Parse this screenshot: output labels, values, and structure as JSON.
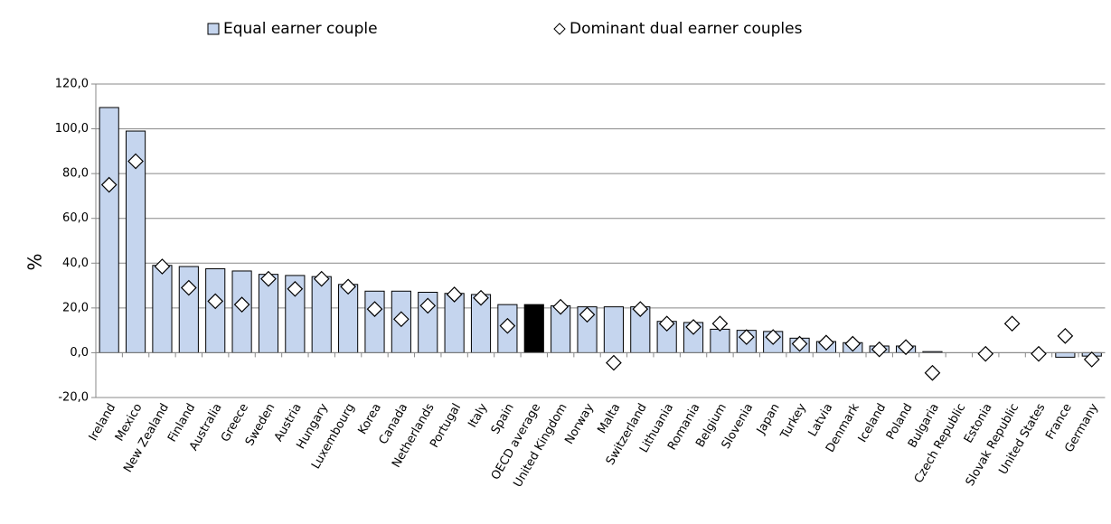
{
  "chart_data": {
    "type": "bar",
    "categories": [
      "Ireland",
      "Mexico",
      "New Zealand",
      "Finland",
      "Australia",
      "Greece",
      "Sweden",
      "Austria",
      "Hungary",
      "Luxembourg",
      "Korea",
      "Canada",
      "Netherlands",
      "Portugal",
      "Italy",
      "Spain",
      "OECD average",
      "United Kingdom",
      "Norway",
      "Malta",
      "Switzerland",
      "Lithuania",
      "Romania",
      "Belgium",
      "Slovenia",
      "Japan",
      "Turkey",
      "Latvia",
      "Denmark",
      "Iceland",
      "Poland",
      "Bulgaria",
      "Czech Republic",
      "Estonia",
      "Slovak Republic",
      "United States",
      "France",
      "Germany"
    ],
    "series": [
      {
        "name": "Equal earner couple",
        "kind": "bar",
        "color": "#c5d5ee",
        "values": [
          109.5,
          99,
          39,
          38.5,
          37.5,
          36.5,
          35,
          34.5,
          34,
          30.5,
          27.5,
          27.5,
          27,
          26.5,
          26,
          21.5,
          21.5,
          21,
          20.5,
          20.5,
          20.5,
          14,
          13.5,
          10.5,
          10,
          9.5,
          6.5,
          5,
          4.5,
          3,
          3,
          0.5,
          0,
          0,
          0,
          0,
          -2,
          -1.5
        ]
      },
      {
        "name": "Dominant dual earner couples",
        "kind": "marker",
        "color": "#ffffff",
        "values": [
          75,
          85.5,
          38.5,
          29,
          23,
          21.5,
          33,
          28.5,
          33,
          29.5,
          19.5,
          15,
          21,
          26,
          24.5,
          12,
          17.5,
          20.5,
          17,
          -4.5,
          19.5,
          13,
          11.5,
          13,
          7,
          7,
          4,
          4.5,
          4,
          1.5,
          2.5,
          -9,
          null,
          -0.5,
          13,
          -0.5,
          7.5,
          -3
        ]
      }
    ],
    "highlight": {
      "category_index": 16,
      "color": "#000000"
    },
    "y_label": "%",
    "ylim": [
      -20,
      120
    ],
    "yticks": [
      {
        "value": -20,
        "label": "-20,0"
      },
      {
        "value": 0,
        "label": "0,0"
      },
      {
        "value": 20,
        "label": "20,0"
      },
      {
        "value": 40,
        "label": "40,0"
      },
      {
        "value": 60,
        "label": "60,0"
      },
      {
        "value": 80,
        "label": "80,0"
      },
      {
        "value": 100,
        "label": "100,0"
      },
      {
        "value": 120,
        "label": "120,0"
      }
    ],
    "grid": true,
    "legend": "top"
  }
}
